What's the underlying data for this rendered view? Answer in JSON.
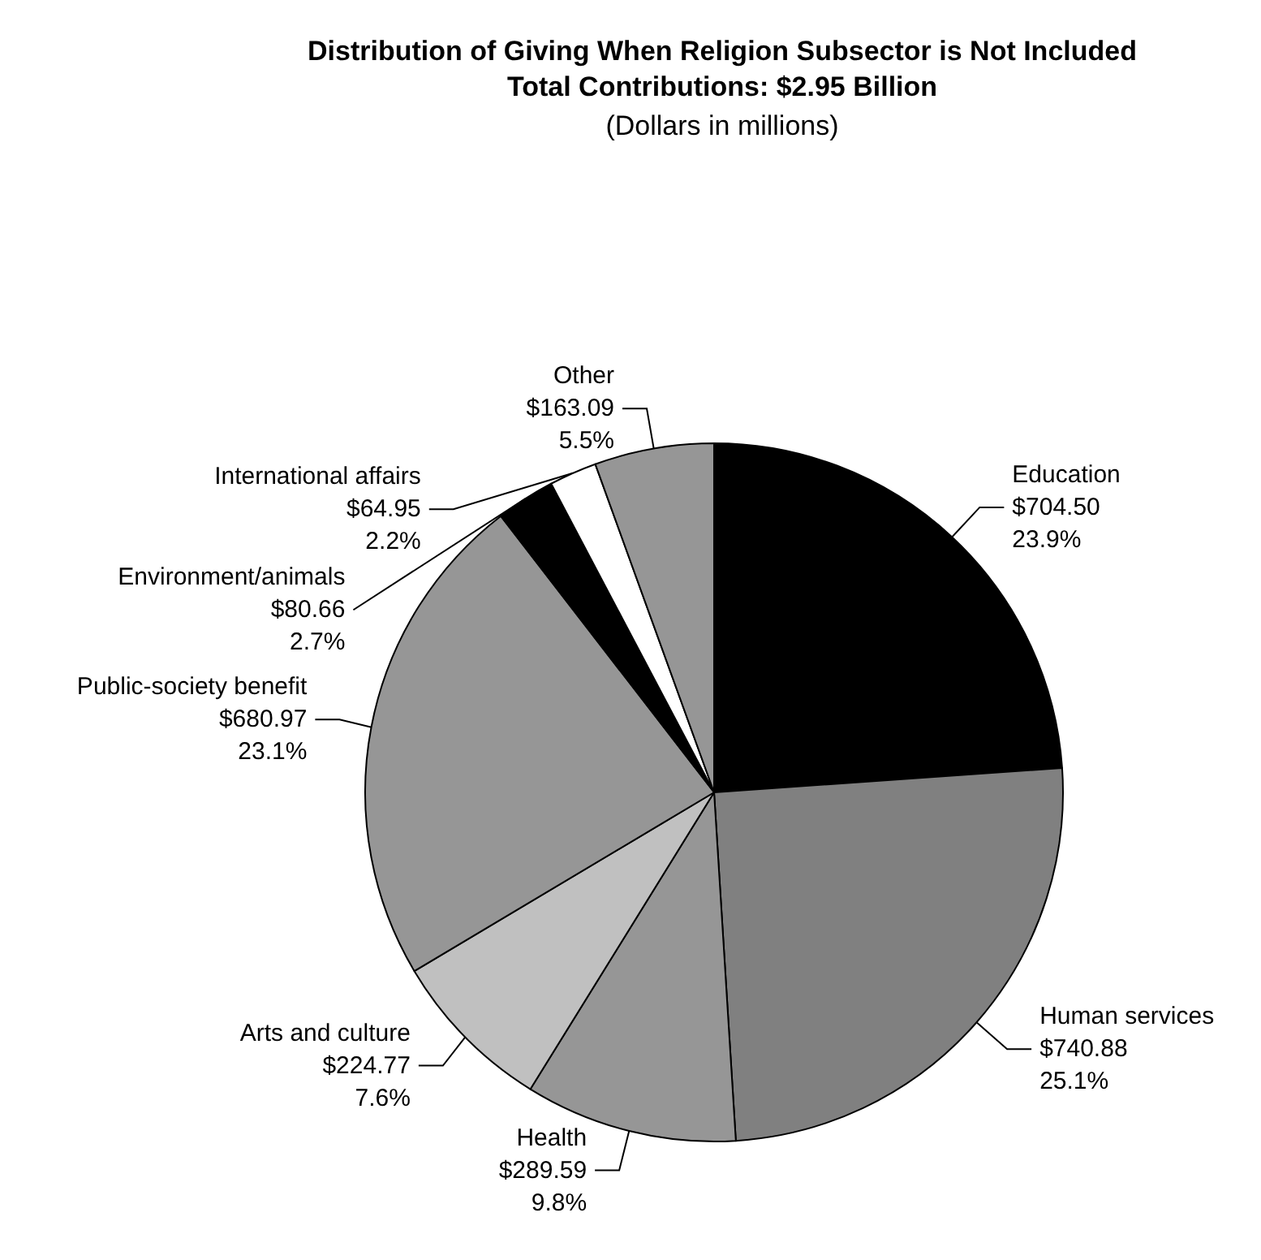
{
  "chart_data": {
    "type": "pie",
    "title": "Distribution of Giving When Religion Subsector is Not Included",
    "subtitle": "Total Contributions: $2.95 Billion",
    "annotations": [
      "(Dollars in millions)"
    ],
    "categories": [
      "Education",
      "Human services",
      "Health",
      "Arts and culture",
      "Public-society benefit",
      "Environment/animals",
      "International affairs",
      "Other"
    ],
    "values": [
      704.5,
      740.88,
      289.59,
      224.77,
      680.97,
      80.66,
      64.95,
      163.09
    ],
    "value_labels": [
      "$704.50\n23.9%",
      "$740.88\n25.1%",
      "$289.59\n9.8%",
      "$224.77\n7.6%",
      "$680.97\n23.1%",
      "$80.66\n2.7%",
      "$64.95\n2.2%",
      "$163.09\n5.5%"
    ],
    "colors": [
      "#000000",
      "#808080",
      "#969696",
      "#c0c0c0",
      "#969696",
      "#000000",
      "#ffffff",
      "#969696"
    ],
    "legend": false
  }
}
